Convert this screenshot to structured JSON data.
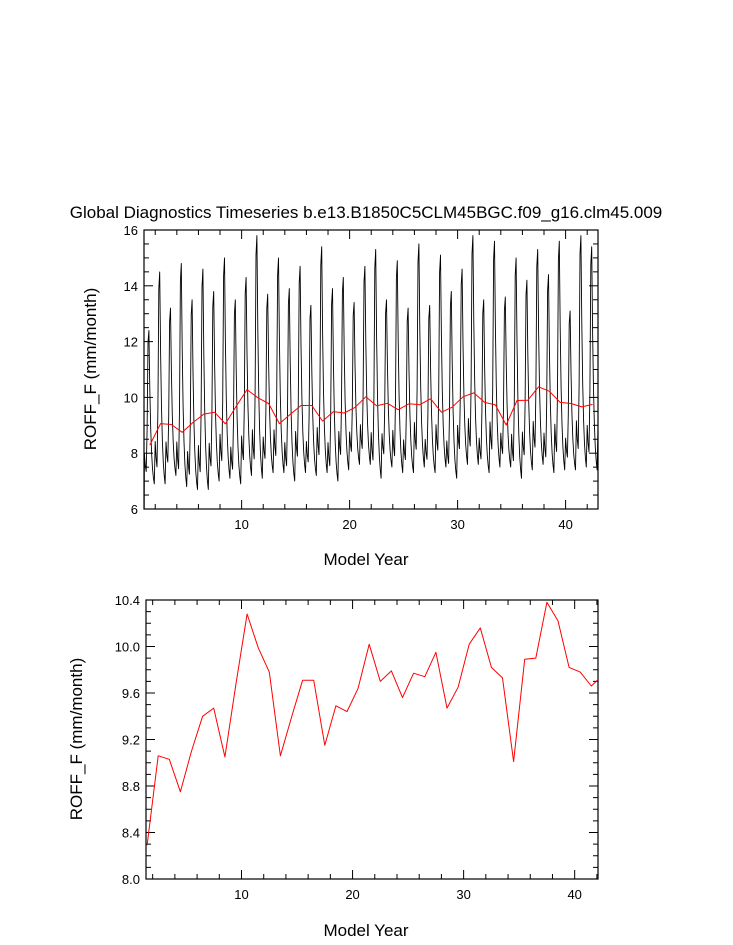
{
  "chart_data": [
    {
      "type": "line",
      "title": "Global Diagnostics Timeseries b.e13.B1850C5CLM45BGC.f09_g16.clm45.009",
      "xlabel": "Model Year",
      "ylabel": "ROFF_F (mm/month)",
      "xlim": [
        0.96,
        43.0
      ],
      "ylim": [
        6,
        16
      ],
      "x_ticks": [
        10,
        20,
        30,
        40
      ],
      "y_ticks": [
        6,
        8,
        10,
        12,
        14,
        16
      ],
      "x_tick_labels": [
        "10",
        "20",
        "30",
        "40"
      ],
      "y_tick_labels": [
        "6",
        "8",
        "10",
        "12",
        "14",
        "16"
      ],
      "grid": false,
      "series": [
        {
          "kind": "monthly",
          "color": "#000000",
          "x_start": 1.0,
          "x_step": 0.08333,
          "annual_peaks": [
            12.4,
            14.5,
            13.2,
            14.8,
            13.5,
            14.6,
            13.8,
            15.0,
            13.5,
            14.3,
            15.8,
            13.7,
            15.0,
            13.9,
            14.7,
            13.3,
            15.4,
            13.9,
            14.3,
            13.4,
            14.7,
            15.3,
            13.5,
            14.9,
            13.2,
            15.5,
            13.3,
            15.1,
            13.8,
            14.6,
            15.8,
            13.5,
            15.6,
            13.6,
            15.0,
            14.2,
            15.3,
            14.4,
            15.6,
            13.1,
            15.8,
            15.4,
            14.8
          ],
          "annual_minima": [
            6.9,
            6.9,
            7.2,
            6.8,
            6.7,
            6.7,
            7.0,
            7.1,
            6.9,
            7.2,
            7.1,
            7.3,
            7.3,
            7.0,
            7.3,
            7.2,
            7.3,
            7.0,
            7.4,
            7.6,
            7.6,
            7.1,
            7.5,
            7.3,
            7.3,
            7.5,
            7.3,
            7.5,
            7.1,
            7.6,
            7.6,
            7.3,
            7.5,
            7.5,
            7.1,
            7.4,
            7.6,
            7.3,
            7.4,
            7.4,
            7.5,
            7.4,
            7.5
          ]
        },
        {
          "kind": "annual",
          "color": "#ff0000",
          "x": [
            1.5,
            2.5,
            3.5,
            4.5,
            5.5,
            6.5,
            7.5,
            8.5,
            9.5,
            10.5,
            11.5,
            12.5,
            13.5,
            14.5,
            15.5,
            16.5,
            17.5,
            18.5,
            19.5,
            20.5,
            21.5,
            22.5,
            23.5,
            24.5,
            25.5,
            26.5,
            27.5,
            28.5,
            29.5,
            30.5,
            31.5,
            32.5,
            33.5,
            34.5,
            35.5,
            36.5,
            37.5,
            38.5,
            39.5,
            40.5,
            41.5,
            42.5
          ],
          "y": [
            8.29,
            9.06,
            9.03,
            8.75,
            9.1,
            9.4,
            9.47,
            9.05,
            9.68,
            10.28,
            9.99,
            9.78,
            9.06,
            9.39,
            9.71,
            9.71,
            9.15,
            9.49,
            9.44,
            9.64,
            10.02,
            9.7,
            9.79,
            9.56,
            9.77,
            9.74,
            9.95,
            9.47,
            9.65,
            10.02,
            10.16,
            9.82,
            9.73,
            9.01,
            9.89,
            9.9,
            10.38,
            10.22,
            9.82,
            9.78,
            9.66,
            9.75
          ]
        }
      ]
    },
    {
      "type": "line",
      "xlabel": "Model Year",
      "ylabel": "ROFF_F (mm/month)",
      "xlim": [
        1.4,
        42.1
      ],
      "ylim": [
        8.0,
        10.4
      ],
      "x_ticks": [
        10,
        20,
        30,
        40
      ],
      "y_ticks": [
        8.0,
        8.4,
        8.8,
        9.2,
        9.6,
        10.0,
        10.4
      ],
      "x_tick_labels": [
        "10",
        "20",
        "30",
        "40"
      ],
      "y_tick_labels": [
        "8.0",
        "8.4",
        "8.8",
        "9.2",
        "9.6",
        "10.0",
        "10.4"
      ],
      "grid": false,
      "series": [
        {
          "kind": "annual",
          "color": "#ff0000",
          "x": [
            1.5,
            2.5,
            3.5,
            4.5,
            5.5,
            6.5,
            7.5,
            8.5,
            9.5,
            10.5,
            11.5,
            12.5,
            13.5,
            14.5,
            15.5,
            16.5,
            17.5,
            18.5,
            19.5,
            20.5,
            21.5,
            22.5,
            23.5,
            24.5,
            25.5,
            26.5,
            27.5,
            28.5,
            29.5,
            30.5,
            31.5,
            32.5,
            33.5,
            34.5,
            35.5,
            36.5,
            37.5,
            38.5,
            39.5,
            40.5,
            41.5,
            42.5
          ],
          "y": [
            8.29,
            9.06,
            9.03,
            8.75,
            9.1,
            9.4,
            9.47,
            9.05,
            9.68,
            10.28,
            9.99,
            9.78,
            9.06,
            9.39,
            9.71,
            9.71,
            9.15,
            9.49,
            9.44,
            9.64,
            10.02,
            9.7,
            9.79,
            9.56,
            9.77,
            9.74,
            9.95,
            9.47,
            9.65,
            10.02,
            10.16,
            9.82,
            9.73,
            9.01,
            9.89,
            9.9,
            10.38,
            10.22,
            9.82,
            9.78,
            9.66,
            9.75
          ]
        }
      ]
    }
  ]
}
